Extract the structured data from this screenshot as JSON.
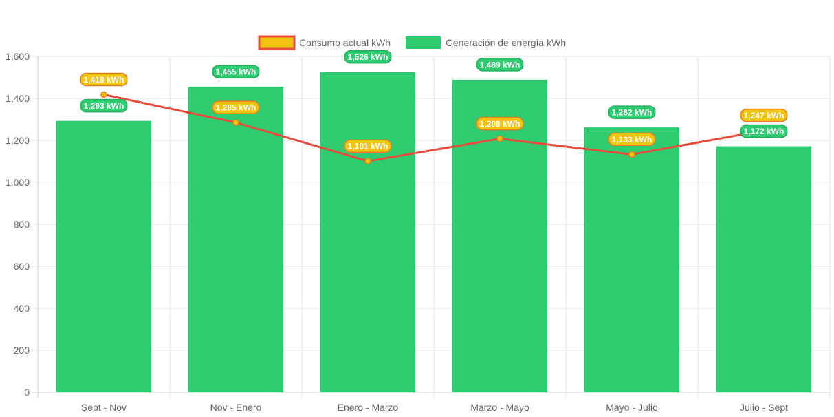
{
  "chart_data": {
    "type": "bar",
    "categories": [
      "Sept - Nov",
      "Nov - Enero",
      "Enero - Marzo",
      "Marzo - Mayo",
      "Mayo - Julio",
      "Julio - Sept"
    ],
    "series": [
      {
        "name": "Consumo actual kWh",
        "type": "line",
        "values": [
          1418,
          1285,
          1101,
          1208,
          1133,
          1247
        ],
        "labels": [
          "1,418 kWh",
          "1,285 kWh",
          "1,101 kWh",
          "1,208 kWh",
          "1,133 kWh",
          "1,247 kWh"
        ],
        "color": "#e74c3c",
        "fill_color": "#f1c40f"
      },
      {
        "name": "Generación de energía kWh",
        "type": "bar",
        "values": [
          1293,
          1455,
          1526,
          1489,
          1262,
          1172
        ],
        "labels": [
          "1,293 kWh",
          "1,455 kWh",
          "1,526 kWh",
          "1,489 kWh",
          "1,262 kWh",
          "1,172 kWh"
        ],
        "color": "#2ecc71"
      }
    ],
    "y_ticks": [
      "0",
      "200",
      "400",
      "600",
      "800",
      "1,000",
      "1,200",
      "1,400",
      "1,600"
    ],
    "ylim": [
      0,
      1600
    ],
    "grid": true,
    "legend_position": "top"
  }
}
